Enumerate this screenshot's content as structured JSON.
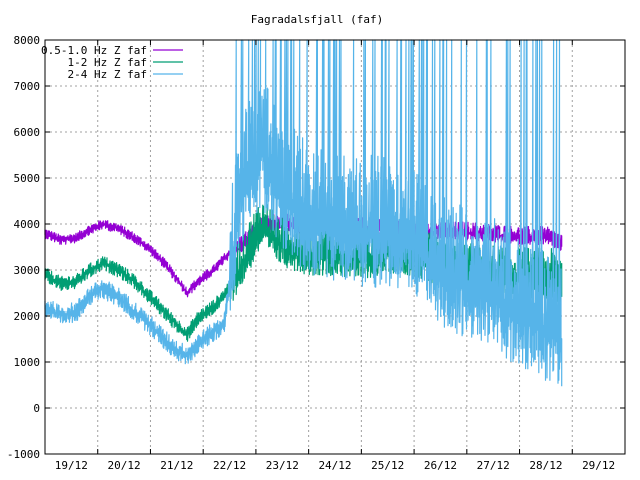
{
  "chart_data": {
    "type": "line",
    "title": "Fagradalsfjall (faf)",
    "xlabel": "",
    "ylabel": "",
    "ylim": [
      -1000,
      8000
    ],
    "y_ticks": [
      -1000,
      0,
      1000,
      2000,
      3000,
      4000,
      5000,
      6000,
      7000,
      8000
    ],
    "x_ticks": [
      "19/12",
      "20/12",
      "21/12",
      "22/12",
      "23/12",
      "24/12",
      "25/12",
      "26/12",
      "27/12",
      "28/12",
      "29/12"
    ],
    "xlim_days": [
      18.5,
      29.5
    ],
    "grid": true,
    "legend_position": "top-left",
    "series": [
      {
        "name": "0.5-1.0 Hz Z faf",
        "color": "#9400d3",
        "x": [
          18.5,
          18.8,
          19.1,
          19.3,
          19.6,
          19.9,
          20.2,
          20.5,
          20.8,
          21.0,
          21.2,
          21.4,
          21.7,
          21.9,
          22.2,
          22.6,
          23.0,
          23.5,
          24.0,
          24.5,
          25.0,
          25.5,
          26.0,
          26.5,
          27.0,
          27.5,
          28.0,
          28.3
        ],
        "y": [
          3800,
          3650,
          3700,
          3850,
          4000,
          3900,
          3700,
          3450,
          3100,
          2800,
          2500,
          2750,
          3000,
          3250,
          3500,
          3900,
          4000,
          3900,
          3950,
          3900,
          3900,
          3850,
          3800,
          3800,
          3750,
          3700,
          3700,
          3550
        ]
      },
      {
        "name": "1-2 Hz Z faf",
        "color": "#009e73",
        "x": [
          18.5,
          18.8,
          19.1,
          19.3,
          19.6,
          19.9,
          20.2,
          20.5,
          20.8,
          21.0,
          21.2,
          21.4,
          21.7,
          21.9,
          22.2,
          22.6,
          23.0,
          23.5,
          24.0,
          24.5,
          25.0,
          25.5,
          26.0,
          26.5,
          27.0,
          27.5,
          28.0,
          28.3
        ],
        "y": [
          2900,
          2700,
          2750,
          2950,
          3150,
          3000,
          2750,
          2400,
          2050,
          1800,
          1600,
          1950,
          2200,
          2450,
          3000,
          3900,
          3500,
          3300,
          3300,
          3200,
          3350,
          3300,
          3000,
          2900,
          2850,
          2800,
          2800,
          2700
        ]
      },
      {
        "name": "2-4 Hz Z faf",
        "color": "#56b4e9",
        "x": [
          18.5,
          18.8,
          19.1,
          19.3,
          19.6,
          19.9,
          20.2,
          20.5,
          20.8,
          21.0,
          21.2,
          21.4,
          21.7,
          21.9,
          22.2,
          22.6,
          23.0,
          23.5,
          24.0,
          24.5,
          25.0,
          25.5,
          26.0,
          26.5,
          27.0,
          27.5,
          28.0,
          28.3
        ],
        "y": [
          2200,
          2000,
          2100,
          2400,
          2600,
          2400,
          2100,
          1800,
          1450,
          1250,
          1150,
          1400,
          1650,
          1850,
          4500,
          5500,
          4500,
          4000,
          3800,
          3700,
          3700,
          3500,
          2800,
          2600,
          2400,
          1900,
          1600,
          1500
        ]
      }
    ]
  }
}
